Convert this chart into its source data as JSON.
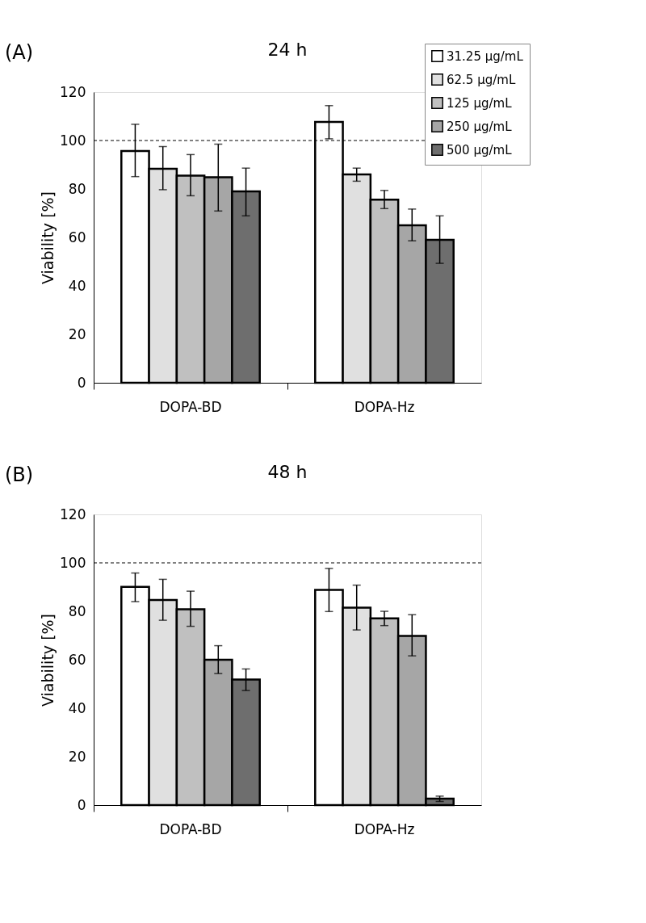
{
  "chart_data": [
    {
      "type": "bar",
      "title": "24 h",
      "ylabel": "Viability [%]",
      "categories": [
        "DOPA-BD",
        "DOPA-Hz"
      ],
      "ylim": [
        0,
        120
      ],
      "yticks": [
        0,
        20,
        40,
        60,
        80,
        100,
        120
      ],
      "grid": false,
      "legend": "top right",
      "annotations": [
        "(A)"
      ],
      "ref_lines": [
        {
          "axis": "y",
          "value": 100,
          "color": "#000000",
          "line_style": "dashed"
        }
      ],
      "series": [
        {
          "name": "31.25 µg/mL",
          "color": "#ffffff",
          "values": [
            95.7,
            107.7
          ],
          "errors": [
            [
              85.1,
              106.7
            ],
            [
              100.7,
              114.4
            ]
          ]
        },
        {
          "name": "62.5 µg/mL",
          "color": "#e0e0e0",
          "values": [
            88.3,
            86
          ],
          "errors": [
            [
              79.7,
              97.5
            ],
            [
              83.2,
              88.6
            ]
          ]
        },
        {
          "name": "125 µg/mL",
          "color": "#c0c0c0",
          "values": [
            85.5,
            75.6
          ],
          "errors": [
            [
              77.2,
              94.2
            ],
            [
              71.9,
              79.4
            ]
          ]
        },
        {
          "name": "250 µg/mL",
          "color": "#a6a6a6",
          "values": [
            84.8,
            65
          ],
          "errors": [
            [
              70.9,
              98.5
            ],
            [
              58.6,
              71.7
            ]
          ]
        },
        {
          "name": "500 µg/mL",
          "color": "#6e6e6e",
          "values": [
            79,
            59
          ],
          "errors": [
            [
              68.9,
              88.6
            ],
            [
              49.3,
              68.9
            ]
          ]
        }
      ]
    },
    {
      "type": "bar",
      "title": "48 h",
      "ylabel": "Viability [%]",
      "categories": [
        "DOPA-BD",
        "DOPA-Hz"
      ],
      "ylim": [
        0,
        120
      ],
      "yticks": [
        0,
        20,
        40,
        60,
        80,
        100,
        120
      ],
      "grid": false,
      "annotations": [
        "(B)"
      ],
      "ref_lines": [
        {
          "axis": "y",
          "value": 100,
          "color": "#000000",
          "line_style": "dashed"
        }
      ],
      "series": [
        {
          "color": "#ffffff",
          "values": [
            90.1,
            88.8
          ],
          "errors": [
            [
              84,
              95.8
            ],
            [
              79.9,
              97.7
            ]
          ]
        },
        {
          "color": "#e0e0e0",
          "values": [
            84.7,
            81.5
          ],
          "errors": [
            [
              76.3,
              93.2
            ],
            [
              72.3,
              90.8
            ]
          ]
        },
        {
          "color": "#c0c0c0",
          "values": [
            80.8,
            77.1
          ],
          "errors": [
            [
              73.8,
              88.3
            ],
            [
              74.1,
              80
            ]
          ]
        },
        {
          "color": "#a6a6a6",
          "values": [
            60,
            69.8
          ],
          "errors": [
            [
              54.3,
              65.8
            ],
            [
              61.6,
              78.6
            ]
          ]
        },
        {
          "color": "#6e6e6e",
          "values": [
            51.8,
            2.7
          ],
          "errors": [
            [
              47.3,
              56.2
            ],
            [
              1.5,
              3.7
            ]
          ]
        }
      ]
    }
  ]
}
